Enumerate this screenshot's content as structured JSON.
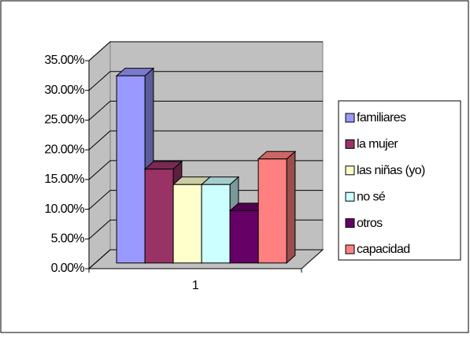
{
  "chart_data": {
    "type": "bar3d",
    "categories": [
      "1"
    ],
    "series": [
      {
        "name": "familiares",
        "color": "#9999ff",
        "values": [
          31.5
        ]
      },
      {
        "name": "la mujer",
        "color": "#993366",
        "values": [
          15.8
        ]
      },
      {
        "name": "las niñas (yo)",
        "color": "#ffffcc",
        "values": [
          13.2
        ]
      },
      {
        "name": "no sé",
        "color": "#ccffff",
        "values": [
          13.2
        ]
      },
      {
        "name": "otros",
        "color": "#660066",
        "values": [
          8.8
        ]
      },
      {
        "name": "capacidad",
        "color": "#ff8080",
        "values": [
          17.5
        ]
      }
    ],
    "ylim": [
      0,
      35
    ],
    "yticks": [
      {
        "value": 0,
        "label": "0.00%"
      },
      {
        "value": 5,
        "label": "5.00%"
      },
      {
        "value": 10,
        "label": "10.00%"
      },
      {
        "value": 15,
        "label": "15.00%"
      },
      {
        "value": 20,
        "label": "20.00%"
      },
      {
        "value": 25,
        "label": "25.00%"
      },
      {
        "value": 30,
        "label": "30.00%"
      },
      {
        "value": 35,
        "label": "35.00%"
      }
    ],
    "grid": true,
    "legend": "right",
    "wall_color": "#c0c0c0"
  }
}
